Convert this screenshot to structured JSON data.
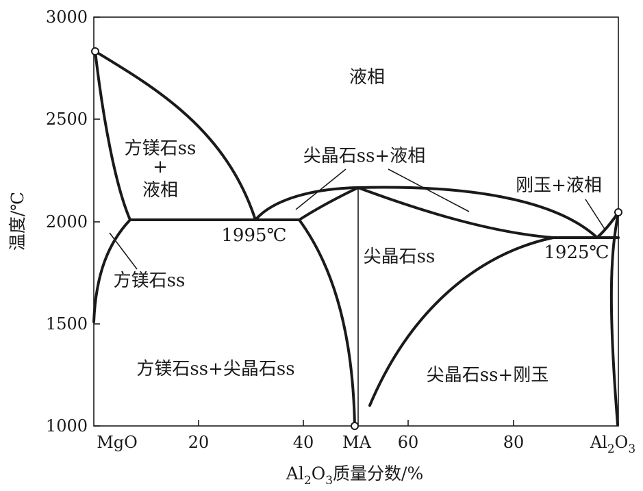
{
  "axes": {
    "x_title_prefix": "Al",
    "x_title_sub": "2",
    "x_title_mid": "O",
    "x_title_sub2": "3",
    "x_title_suffix": "质量分数/%",
    "y_title": "温度/℃",
    "x_ticks": [
      {
        "label": "MgO",
        "value": 0
      },
      {
        "label": "20",
        "value": 20
      },
      {
        "label": "40",
        "value": 40
      },
      {
        "label": "MA",
        "value": 50.4
      },
      {
        "label": "60",
        "value": 60
      },
      {
        "label": "80",
        "value": 80
      }
    ],
    "x_end_label": {
      "prefix": "Al",
      "sub": "2",
      "mid": "O",
      "sub2": "3",
      "value": 100
    },
    "y_ticks": [
      {
        "label": "1000",
        "value": 1000
      },
      {
        "label": "1500",
        "value": 1500
      },
      {
        "label": "2000",
        "value": 2000
      },
      {
        "label": "2500",
        "value": 2500
      },
      {
        "label": "3000",
        "value": 3000
      }
    ],
    "xlim": [
      0,
      100
    ],
    "ylim": [
      1000,
      3000
    ]
  },
  "regions": {
    "liquid": "液相",
    "periclase_liquid_1": "方镁石ss",
    "periclase_liquid_2": "+",
    "periclase_liquid_3": "液相",
    "eutectic_1": "1995℃",
    "periclase_ss": "方镁石ss",
    "spinel_liquid": "尖晶石ss+液相",
    "spinel_ss": "尖晶石ss",
    "corundum_liquid": "刚玉+液相",
    "eutectic_2": "1925℃",
    "periclase_spinel": "方镁石ss+尖晶石ss",
    "spinel_corundum": "尖晶石ss+刚玉"
  },
  "points": {
    "mgo_melting": {
      "x": 0,
      "y": 2825
    },
    "al2o3_melting": {
      "x": 100,
      "y": 2050
    },
    "ma_composition": {
      "x": 50.4,
      "y": 1000
    }
  }
}
